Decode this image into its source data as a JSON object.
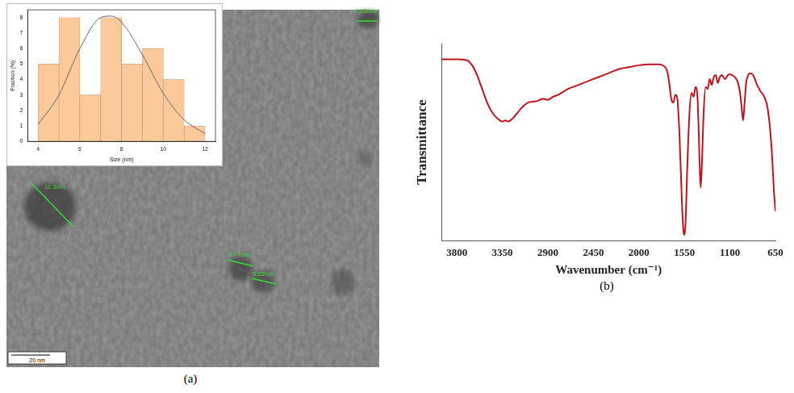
{
  "panel_labels": [
    "(a)",
    "(b)"
  ],
  "image": {
    "scale_bar": "20 nm",
    "measurements": [
      "4.53nm",
      "11.3nm",
      "5.77nm",
      "5.22nm"
    ]
  },
  "chart_data": [
    {
      "type": "histogram",
      "x_label": "Size (nm)",
      "y_label": "Fraction (%)",
      "bins": [
        4,
        5,
        6,
        7,
        8,
        9,
        10,
        11,
        12
      ],
      "counts": [
        5,
        8,
        3,
        8,
        5,
        6,
        4,
        1
      ],
      "color": "#fcc99b",
      "fit": {
        "x": [
          4,
          5,
          6,
          7,
          7.5,
          8,
          9,
          10,
          11,
          12
        ],
        "values": [
          1.1,
          3.0,
          6.0,
          8.0,
          8.1,
          7.7,
          5.6,
          3.1,
          1.4,
          0.5
        ],
        "color": "#666666"
      },
      "xlim": [
        3.5,
        12.5
      ],
      "xticks": [
        4,
        6,
        8,
        10,
        12
      ],
      "ylim": [
        0,
        8.5
      ],
      "yticks": [
        0,
        1,
        2,
        3,
        4,
        5,
        6,
        7,
        8
      ],
      "grid": false
    },
    {
      "type": "line",
      "x_label": "Wavenumber (cm⁻¹)",
      "y_label": "Transmittance",
      "x": [
        3950,
        3800,
        3700,
        3650,
        3600,
        3550,
        3500,
        3450,
        3400,
        3350,
        3320,
        3290,
        3250,
        3200,
        3150,
        3100,
        3050,
        3000,
        2950,
        2900,
        2850,
        2800,
        2700,
        2600,
        2500,
        2400,
        2300,
        2200,
        2100,
        2000,
        1900,
        1800,
        1750,
        1720,
        1700,
        1680,
        1660,
        1640,
        1620,
        1600,
        1575,
        1560,
        1550,
        1540,
        1520,
        1500,
        1480,
        1460,
        1440,
        1420,
        1400,
        1390,
        1380,
        1360,
        1340,
        1320,
        1300,
        1280,
        1260,
        1240,
        1220,
        1200,
        1180,
        1150,
        1120,
        1100,
        1080,
        1050,
        1020,
        1000,
        985,
        970,
        955,
        940,
        920,
        900,
        880,
        860,
        840,
        800,
        760,
        730,
        700,
        680,
        665,
        650
      ],
      "values": [
        92,
        92,
        91.5,
        89,
        84,
        77,
        70,
        65,
        62,
        60.5,
        61,
        60.5,
        62,
        65,
        68,
        70,
        70.5,
        71,
        72,
        71.5,
        73,
        74,
        77,
        79,
        81,
        83,
        85,
        87,
        88,
        89,
        89.5,
        89.5,
        88.5,
        86,
        80,
        72,
        70,
        74,
        72,
        55,
        20,
        5,
        3,
        8,
        40,
        65,
        75,
        73,
        78,
        72,
        40,
        27,
        35,
        65,
        78,
        77,
        82,
        79,
        83,
        84,
        80,
        83,
        84,
        82,
        84,
        84.5,
        84,
        83,
        80,
        75,
        68,
        61,
        70,
        80,
        84,
        85,
        84.5,
        83,
        80,
        76,
        73,
        68,
        55,
        40,
        25,
        15
      ],
      "color": "#c0141c",
      "xlim": [
        3950,
        650
      ],
      "xticks": [
        3800,
        3350,
        2900,
        2450,
        2000,
        1550,
        1100,
        650
      ],
      "ylim": [
        0,
        100
      ],
      "tick_labels": "x",
      "grid": false
    }
  ]
}
